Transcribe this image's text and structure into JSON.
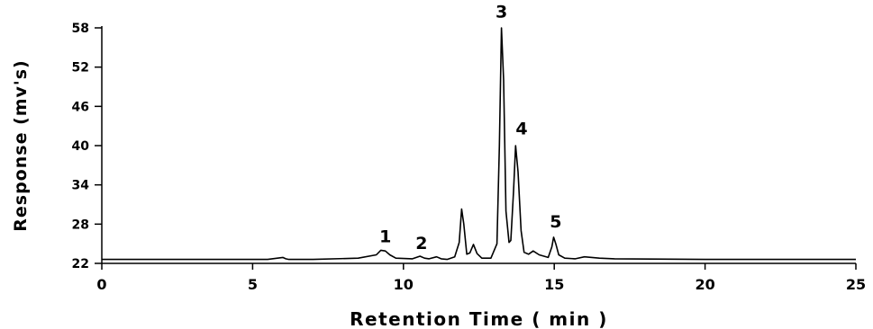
{
  "chart_data": {
    "type": "line",
    "title": "",
    "xlabel": "Retention Time ( min )",
    "ylabel": "Response (mv's)",
    "xlim": [
      0,
      25
    ],
    "ylim": [
      22,
      58
    ],
    "x_ticks": [
      0,
      5,
      10,
      15,
      20,
      25
    ],
    "y_ticks": [
      22,
      28,
      34,
      40,
      46,
      52,
      58
    ],
    "grid": false,
    "legend": "none",
    "line_color": "#000000",
    "series": [
      {
        "x": [
          0,
          5.5,
          6.0,
          6.1,
          6.2,
          7.0,
          8.5,
          9.1,
          9.25,
          9.4,
          9.55,
          9.75,
          10.3,
          10.55,
          10.7,
          10.85,
          11.1,
          11.25,
          11.45,
          11.7,
          11.85,
          11.93,
          12.0,
          12.1,
          12.2,
          12.32,
          12.44,
          12.6,
          12.9,
          13.1,
          13.18,
          13.25,
          13.32,
          13.4,
          13.5,
          13.56,
          13.65,
          13.72,
          13.8,
          13.9,
          14.0,
          14.15,
          14.3,
          14.5,
          14.8,
          14.92,
          14.98,
          15.05,
          15.15,
          15.35,
          15.7,
          16.0,
          16.5,
          17.0,
          20.0,
          25.0
        ],
        "y": [
          22.6,
          22.6,
          22.9,
          22.7,
          22.6,
          22.6,
          22.8,
          23.3,
          24.0,
          23.9,
          23.3,
          22.8,
          22.7,
          23.1,
          22.8,
          22.7,
          23.0,
          22.7,
          22.6,
          23.0,
          25.2,
          30.3,
          28.0,
          23.4,
          23.6,
          24.9,
          23.5,
          22.8,
          22.8,
          25.0,
          40.0,
          58.0,
          50.0,
          30.0,
          25.2,
          25.5,
          33.0,
          40.0,
          36.0,
          27.0,
          23.7,
          23.4,
          23.9,
          23.3,
          22.9,
          24.5,
          26.0,
          25.0,
          23.3,
          22.8,
          22.7,
          23.0,
          22.8,
          22.7,
          22.6,
          22.6
        ]
      }
    ],
    "annotations": [
      {
        "text": "1",
        "x": 9.4,
        "y": 25.2
      },
      {
        "text": "2",
        "x": 10.6,
        "y": 24.2
      },
      {
        "text": "3",
        "x": 13.25,
        "y": 59.6
      },
      {
        "text": "4",
        "x": 13.92,
        "y": 41.7
      },
      {
        "text": "5",
        "x": 15.05,
        "y": 27.5
      }
    ]
  }
}
